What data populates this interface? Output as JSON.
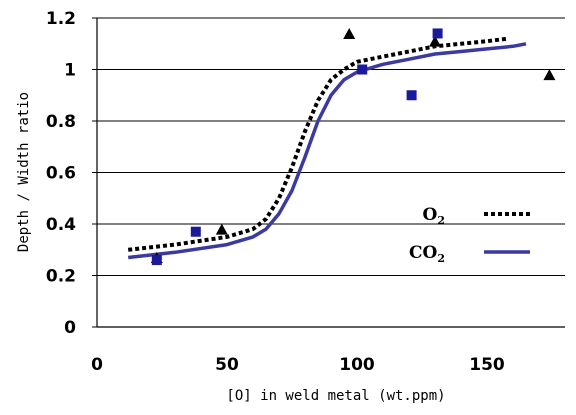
{
  "chart_data": {
    "type": "scatter",
    "title": "",
    "xlabel": "[O] in weld metal (wt.ppm)",
    "ylabel": "Depth / Width ratio",
    "xlim": [
      0,
      180
    ],
    "ylim": [
      0,
      1.2
    ],
    "x_ticks": [
      "0",
      "50",
      "100",
      "150"
    ],
    "y_ticks": [
      "0",
      "0.2",
      "0.4",
      "0.6",
      "0.8",
      "1",
      "1.2"
    ],
    "grid": "horizontal",
    "legend_placement": "right-center",
    "legend": [
      {
        "label_main": "O",
        "label_sub": "2",
        "style": "dotted",
        "color": "#000000"
      },
      {
        "label_main": "CO",
        "label_sub": "2",
        "style": "solid",
        "color": "#3a3aa0"
      }
    ],
    "points": [
      {
        "marker": "triangle",
        "color": "#000000",
        "x": [
          23,
          48,
          97,
          130,
          174
        ],
        "y": [
          0.27,
          0.38,
          1.14,
          1.11,
          0.98
        ]
      },
      {
        "marker": "square",
        "color": "#1a1a9a",
        "x": [
          23,
          38,
          102,
          121,
          131
        ],
        "y": [
          0.26,
          0.37,
          1.0,
          0.9,
          1.14
        ]
      }
    ],
    "curves": [
      {
        "legend_index": 0,
        "style": "dotted",
        "color": "#000000",
        "x": [
          12,
          30,
          50,
          60,
          65,
          70,
          75,
          80,
          85,
          90,
          95,
          100,
          110,
          120,
          130,
          140,
          150,
          158
        ],
        "y": [
          0.3,
          0.32,
          0.35,
          0.38,
          0.42,
          0.5,
          0.62,
          0.76,
          0.88,
          0.96,
          1.0,
          1.03,
          1.05,
          1.07,
          1.09,
          1.1,
          1.11,
          1.12
        ]
      },
      {
        "legend_index": 1,
        "style": "solid",
        "color": "#3a3aa0",
        "x": [
          12,
          30,
          50,
          60,
          65,
          70,
          75,
          80,
          85,
          90,
          95,
          100,
          110,
          120,
          130,
          140,
          150,
          160,
          165
        ],
        "y": [
          0.27,
          0.29,
          0.32,
          0.35,
          0.38,
          0.44,
          0.53,
          0.66,
          0.8,
          0.9,
          0.96,
          0.99,
          1.02,
          1.04,
          1.06,
          1.07,
          1.08,
          1.09,
          1.1
        ]
      }
    ]
  }
}
